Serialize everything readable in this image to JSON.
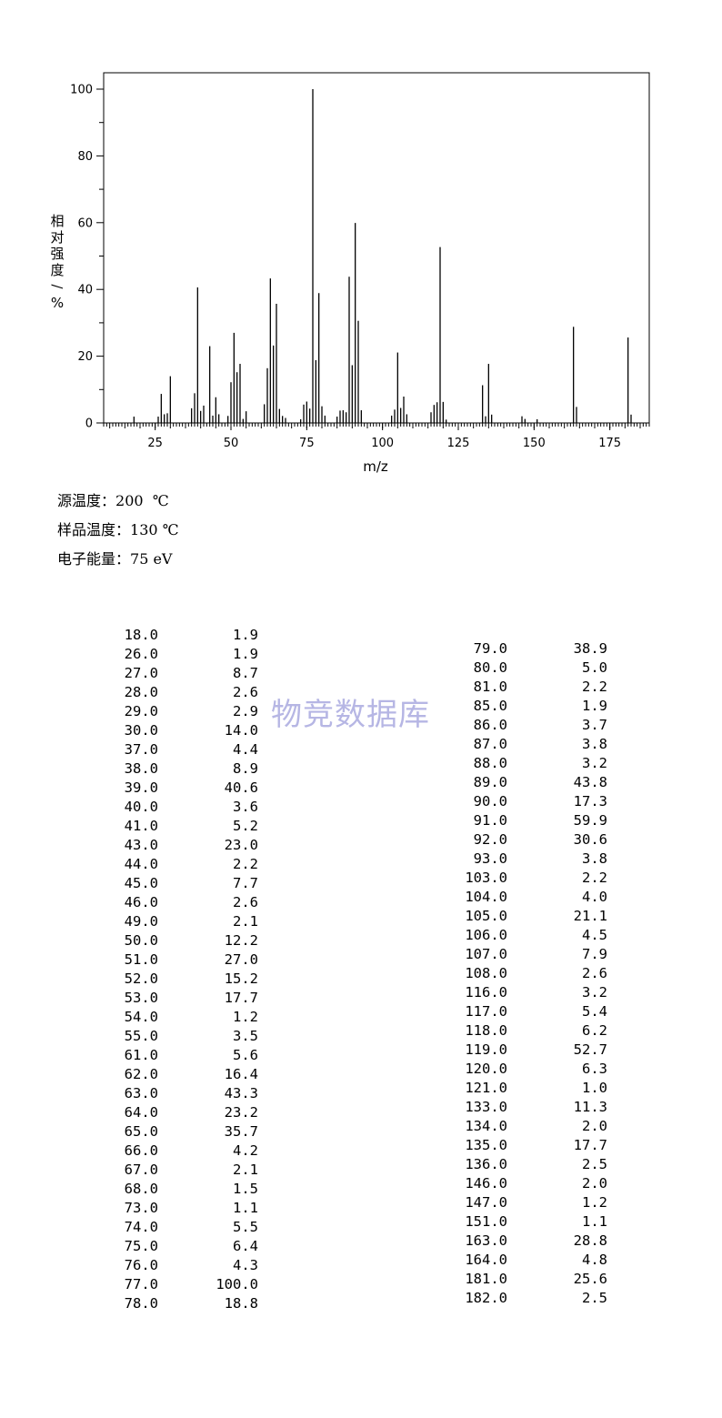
{
  "chart_data": {
    "type": "bar",
    "xlabel": "m/z",
    "ylabel": "相对强度/%",
    "xlim": [
      8,
      188
    ],
    "ylim": [
      0,
      100
    ],
    "x_ticks": [
      25,
      50,
      75,
      100,
      125,
      150,
      175
    ],
    "y_ticks": [
      0,
      20,
      40,
      60,
      80,
      100
    ],
    "grid": false,
    "x": [
      18.0,
      26.0,
      27.0,
      28.0,
      29.0,
      30.0,
      37.0,
      38.0,
      39.0,
      40.0,
      41.0,
      43.0,
      44.0,
      45.0,
      46.0,
      49.0,
      50.0,
      51.0,
      52.0,
      53.0,
      54.0,
      55.0,
      61.0,
      62.0,
      63.0,
      64.0,
      65.0,
      66.0,
      67.0,
      68.0,
      73.0,
      74.0,
      75.0,
      76.0,
      77.0,
      78.0,
      79.0,
      80.0,
      81.0,
      85.0,
      86.0,
      87.0,
      88.0,
      89.0,
      90.0,
      91.0,
      92.0,
      93.0,
      103.0,
      104.0,
      105.0,
      106.0,
      107.0,
      108.0,
      116.0,
      117.0,
      118.0,
      119.0,
      120.0,
      121.0,
      133.0,
      134.0,
      135.0,
      136.0,
      146.0,
      147.0,
      151.0,
      163.0,
      164.0,
      181.0,
      182.0
    ],
    "values": [
      1.9,
      1.9,
      8.7,
      2.6,
      2.9,
      14.0,
      4.4,
      8.9,
      40.6,
      3.6,
      5.2,
      23.0,
      2.2,
      7.7,
      2.6,
      2.1,
      12.2,
      27.0,
      15.2,
      17.7,
      1.2,
      3.5,
      5.6,
      16.4,
      43.3,
      23.2,
      35.7,
      4.2,
      2.1,
      1.5,
      1.1,
      5.5,
      6.4,
      4.3,
      100.0,
      18.8,
      38.9,
      5.0,
      2.2,
      1.9,
      3.7,
      3.8,
      3.2,
      43.8,
      17.3,
      59.9,
      30.6,
      3.8,
      2.2,
      4.0,
      21.1,
      4.5,
      7.9,
      2.6,
      3.2,
      5.4,
      6.2,
      52.7,
      6.3,
      1.0,
      11.3,
      2.0,
      17.7,
      2.5,
      2.0,
      1.2,
      1.1,
      28.8,
      4.8,
      25.6,
      2.5
    ]
  },
  "params": {
    "source_temp": {
      "label": "源温度：",
      "value": "200  ℃"
    },
    "sample_temp": {
      "label": "样品温度：",
      "value": "130 ℃"
    },
    "electron_energy": {
      "label": "电子能量：",
      "value": "75 eV"
    }
  },
  "table": {
    "left": [
      [
        "18.0",
        "1.9"
      ],
      [
        "26.0",
        "1.9"
      ],
      [
        "27.0",
        "8.7"
      ],
      [
        "28.0",
        "2.6"
      ],
      [
        "29.0",
        "2.9"
      ],
      [
        "30.0",
        "14.0"
      ],
      [
        "37.0",
        "4.4"
      ],
      [
        "38.0",
        "8.9"
      ],
      [
        "39.0",
        "40.6"
      ],
      [
        "40.0",
        "3.6"
      ],
      [
        "41.0",
        "5.2"
      ],
      [
        "43.0",
        "23.0"
      ],
      [
        "44.0",
        "2.2"
      ],
      [
        "45.0",
        "7.7"
      ],
      [
        "46.0",
        "2.6"
      ],
      [
        "49.0",
        "2.1"
      ],
      [
        "50.0",
        "12.2"
      ],
      [
        "51.0",
        "27.0"
      ],
      [
        "52.0",
        "15.2"
      ],
      [
        "53.0",
        "17.7"
      ],
      [
        "54.0",
        "1.2"
      ],
      [
        "55.0",
        "3.5"
      ],
      [
        "61.0",
        "5.6"
      ],
      [
        "62.0",
        "16.4"
      ],
      [
        "63.0",
        "43.3"
      ],
      [
        "64.0",
        "23.2"
      ],
      [
        "65.0",
        "35.7"
      ],
      [
        "66.0",
        "4.2"
      ],
      [
        "67.0",
        "2.1"
      ],
      [
        "68.0",
        "1.5"
      ],
      [
        "73.0",
        "1.1"
      ],
      [
        "74.0",
        "5.5"
      ],
      [
        "75.0",
        "6.4"
      ],
      [
        "76.0",
        "4.3"
      ],
      [
        "77.0",
        "100.0"
      ],
      [
        "78.0",
        "18.8"
      ]
    ],
    "right": [
      [
        "79.0",
        "38.9"
      ],
      [
        "80.0",
        "5.0"
      ],
      [
        "81.0",
        "2.2"
      ],
      [
        "85.0",
        "1.9"
      ],
      [
        "86.0",
        "3.7"
      ],
      [
        "87.0",
        "3.8"
      ],
      [
        "88.0",
        "3.2"
      ],
      [
        "89.0",
        "43.8"
      ],
      [
        "90.0",
        "17.3"
      ],
      [
        "91.0",
        "59.9"
      ],
      [
        "92.0",
        "30.6"
      ],
      [
        "93.0",
        "3.8"
      ],
      [
        "103.0",
        "2.2"
      ],
      [
        "104.0",
        "4.0"
      ],
      [
        "105.0",
        "21.1"
      ],
      [
        "106.0",
        "4.5"
      ],
      [
        "107.0",
        "7.9"
      ],
      [
        "108.0",
        "2.6"
      ],
      [
        "116.0",
        "3.2"
      ],
      [
        "117.0",
        "5.4"
      ],
      [
        "118.0",
        "6.2"
      ],
      [
        "119.0",
        "52.7"
      ],
      [
        "120.0",
        "6.3"
      ],
      [
        "121.0",
        "1.0"
      ],
      [
        "133.0",
        "11.3"
      ],
      [
        "134.0",
        "2.0"
      ],
      [
        "135.0",
        "17.7"
      ],
      [
        "136.0",
        "2.5"
      ],
      [
        "146.0",
        "2.0"
      ],
      [
        "147.0",
        "1.2"
      ],
      [
        "151.0",
        "1.1"
      ],
      [
        "163.0",
        "28.8"
      ],
      [
        "164.0",
        "4.8"
      ],
      [
        "181.0",
        "25.6"
      ],
      [
        "182.0",
        "2.5"
      ]
    ]
  },
  "watermark": "物竞数据库"
}
